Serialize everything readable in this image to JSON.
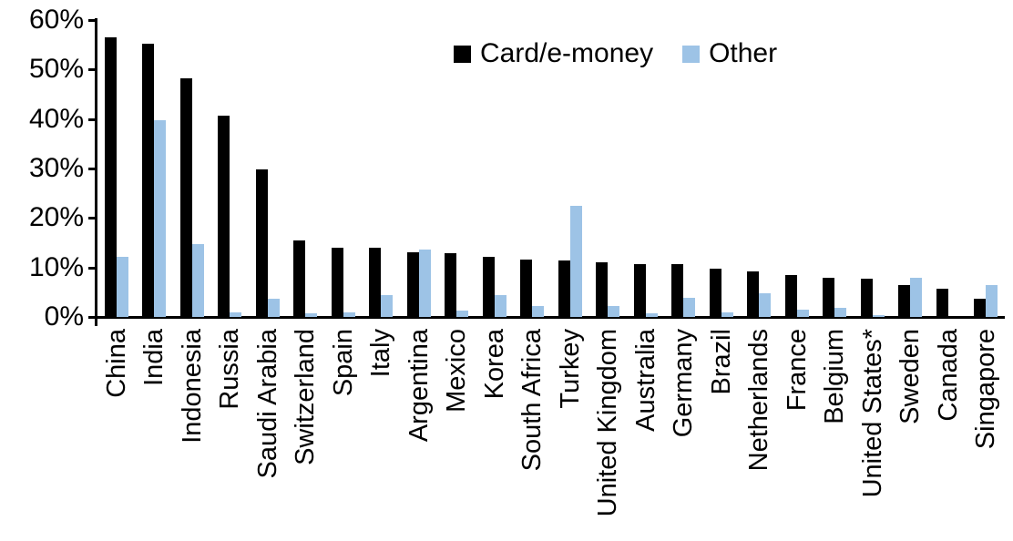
{
  "chart_data": {
    "type": "bar",
    "title": "",
    "xlabel": "",
    "ylabel": "",
    "ylim": [
      0,
      60
    ],
    "y_ticks": [
      "60%",
      "50%",
      "40%",
      "30%",
      "20%",
      "10%",
      "0%"
    ],
    "grid": false,
    "legend_position": "top-center",
    "categories": [
      "China",
      "India",
      "Indonesia",
      "Russia",
      "Saudi Arabia",
      "Switzerland",
      "Spain",
      "Italy",
      "Argentina",
      "Mexico",
      "Korea",
      "South Africa",
      "Turkey",
      "United Kingdom",
      "Australia",
      "Germany",
      "Brazil",
      "Netherlands",
      "France",
      "Belgium",
      "United States*",
      "Sweden",
      "Canada",
      "Singapore"
    ],
    "series": [
      {
        "name": "Card/e-money",
        "color": "#000000",
        "values": [
          56.5,
          55.2,
          48.3,
          40.6,
          29.8,
          15.4,
          14.0,
          13.9,
          13.1,
          12.8,
          12.2,
          11.6,
          11.5,
          11.0,
          10.7,
          10.6,
          9.8,
          9.2,
          8.5,
          8.0,
          7.8,
          6.4,
          5.8,
          3.7
        ]
      },
      {
        "name": "Other",
        "color": "#9DC3E6",
        "values": [
          12.2,
          39.7,
          14.7,
          0.9,
          3.7,
          0.7,
          0.9,
          4.5,
          13.6,
          1.2,
          4.4,
          2.3,
          22.5,
          2.3,
          0.7,
          3.9,
          1.0,
          4.7,
          1.4,
          1.8,
          0.2,
          8.0,
          0.0,
          6.5
        ]
      }
    ],
    "axis_color": "#000000",
    "background_color": "#ffffff"
  }
}
